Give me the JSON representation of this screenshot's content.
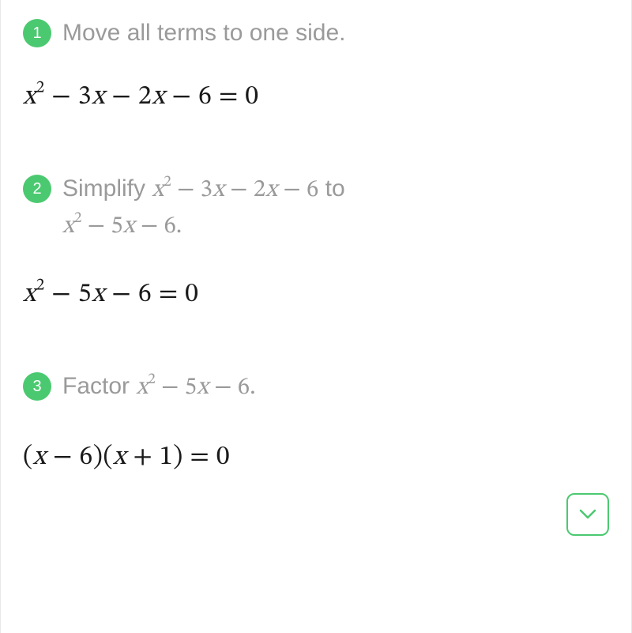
{
  "colors": {
    "badge_bg": "#4bc970",
    "badge_fg": "#ffffff",
    "step_text": "#9a9a9a",
    "equation": "#1a1a1a",
    "border": "#e8e8e8",
    "expand_border": "#4bc970"
  },
  "steps": [
    {
      "num": "1",
      "label": "Move all terms to one side.",
      "result_html": "<span class='mi'>x</span><sup class='upright'>2</sup> <span class='upright'>&minus;</span> 3<span class='mi'>x</span> <span class='upright'>&minus;</span> 2<span class='mi'>x</span> <span class='upright'>&minus;</span> 6 <span class='upright'>=</span> 0"
    },
    {
      "num": "2",
      "label_pre": "Simplify ",
      "label_math1": "x² − 3x − 2x − 6",
      "label_mid": " to ",
      "label_math2": "x² − 5x − 6.",
      "result_html": "<span class='mi'>x</span><sup class='upright'>2</sup> <span class='upright'>&minus;</span> 5<span class='mi'>x</span> <span class='upright'>&minus;</span> 6 <span class='upright'>=</span> 0"
    },
    {
      "num": "3",
      "label_pre": "Factor ",
      "label_math1": "x² − 5x − 6.",
      "result_html": "<span class='upright'>(</span><span class='mi'>x</span> <span class='upright'>&minus;</span> 6<span class='upright'>)(</span><span class='mi'>x</span> <span class='upright'>+</span> 1<span class='upright'>)</span> <span class='upright'>=</span> 0"
    }
  ],
  "expand_icon": "chevron-down"
}
